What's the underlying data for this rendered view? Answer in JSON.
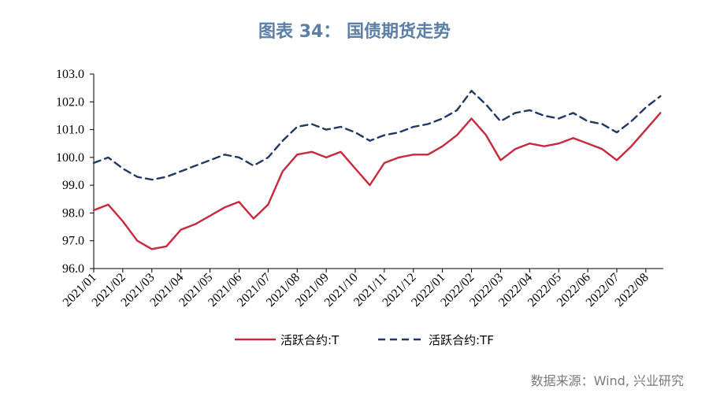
{
  "title": "图表 34： 国债期货走势",
  "source": "数据来源：Wind, 兴业研究",
  "colors": {
    "T": "#c8283c",
    "TF": "#1f3864",
    "title": "#5b7fa6"
  },
  "chart_data": {
    "type": "line",
    "title": "图表 34： 国债期货走势",
    "xlabel": "",
    "ylabel": "",
    "ylim": [
      96.0,
      103.0
    ],
    "yticks": [
      "96.0",
      "97.0",
      "98.0",
      "99.0",
      "100.0",
      "101.0",
      "102.0",
      "103.0"
    ],
    "xlim": [
      "2021/01",
      "2022/08"
    ],
    "xticks": [
      "2021/01",
      "2021/02",
      "2021/03",
      "2021/04",
      "2021/05",
      "2021/06",
      "2021/07",
      "2021/08",
      "2021/09",
      "2021/10",
      "2021/11",
      "2021/12",
      "2022/01",
      "2022/02",
      "2022/03",
      "2022/04",
      "2022/05",
      "2022/06",
      "2022/07",
      "2022/08"
    ],
    "grid": false,
    "legend": "bottom",
    "series": [
      {
        "name": "活跃合约:T",
        "style": "solid",
        "x": [
          "2021/01",
          "2021/01.5",
          "2021/02",
          "2021/02.5",
          "2021/03",
          "2021/03.5",
          "2021/04",
          "2021/04.5",
          "2021/05",
          "2021/05.5",
          "2021/06",
          "2021/06.5",
          "2021/07",
          "2021/07.5",
          "2021/08",
          "2021/08.5",
          "2021/09",
          "2021/09.5",
          "2021/10",
          "2021/10.5",
          "2021/11",
          "2021/11.5",
          "2021/12",
          "2021/12.5",
          "2022/01",
          "2022/01.5",
          "2022/02",
          "2022/02.5",
          "2022/03",
          "2022/03.5",
          "2022/04",
          "2022/04.5",
          "2022/05",
          "2022/05.5",
          "2022/06",
          "2022/06.5",
          "2022/07",
          "2022/07.5",
          "2022/08",
          "2022/08.5"
        ],
        "values": [
          98.1,
          98.3,
          97.7,
          97.0,
          96.7,
          96.8,
          97.4,
          97.6,
          97.9,
          98.2,
          98.4,
          97.8,
          98.3,
          99.5,
          100.1,
          100.2,
          100.0,
          100.2,
          99.6,
          99.0,
          99.8,
          100.0,
          100.1,
          100.1,
          100.4,
          100.8,
          101.4,
          100.8,
          99.9,
          100.3,
          100.5,
          100.4,
          100.5,
          100.7,
          100.5,
          100.3,
          99.9,
          100.4,
          101.0,
          101.6
        ]
      },
      {
        "name": "活跃合约:TF",
        "style": "dashed",
        "x": [
          "2021/01",
          "2021/01.5",
          "2021/02",
          "2021/02.5",
          "2021/03",
          "2021/03.5",
          "2021/04",
          "2021/04.5",
          "2021/05",
          "2021/05.5",
          "2021/06",
          "2021/06.5",
          "2021/07",
          "2021/07.5",
          "2021/08",
          "2021/08.5",
          "2021/09",
          "2021/09.5",
          "2021/10",
          "2021/10.5",
          "2021/11",
          "2021/11.5",
          "2021/12",
          "2021/12.5",
          "2022/01",
          "2022/01.5",
          "2022/02",
          "2022/02.5",
          "2022/03",
          "2022/03.5",
          "2022/04",
          "2022/04.5",
          "2022/05",
          "2022/05.5",
          "2022/06",
          "2022/06.5",
          "2022/07",
          "2022/07.5",
          "2022/08",
          "2022/08.5"
        ],
        "values": [
          99.8,
          100.0,
          99.6,
          99.3,
          99.2,
          99.3,
          99.5,
          99.7,
          99.9,
          100.1,
          100.0,
          99.7,
          100.0,
          100.6,
          101.1,
          101.2,
          101.0,
          101.1,
          100.9,
          100.6,
          100.8,
          100.9,
          101.1,
          101.2,
          101.4,
          101.7,
          102.4,
          101.9,
          101.3,
          101.6,
          101.7,
          101.5,
          101.4,
          101.6,
          101.3,
          101.2,
          100.9,
          101.3,
          101.8,
          102.2
        ]
      }
    ]
  }
}
